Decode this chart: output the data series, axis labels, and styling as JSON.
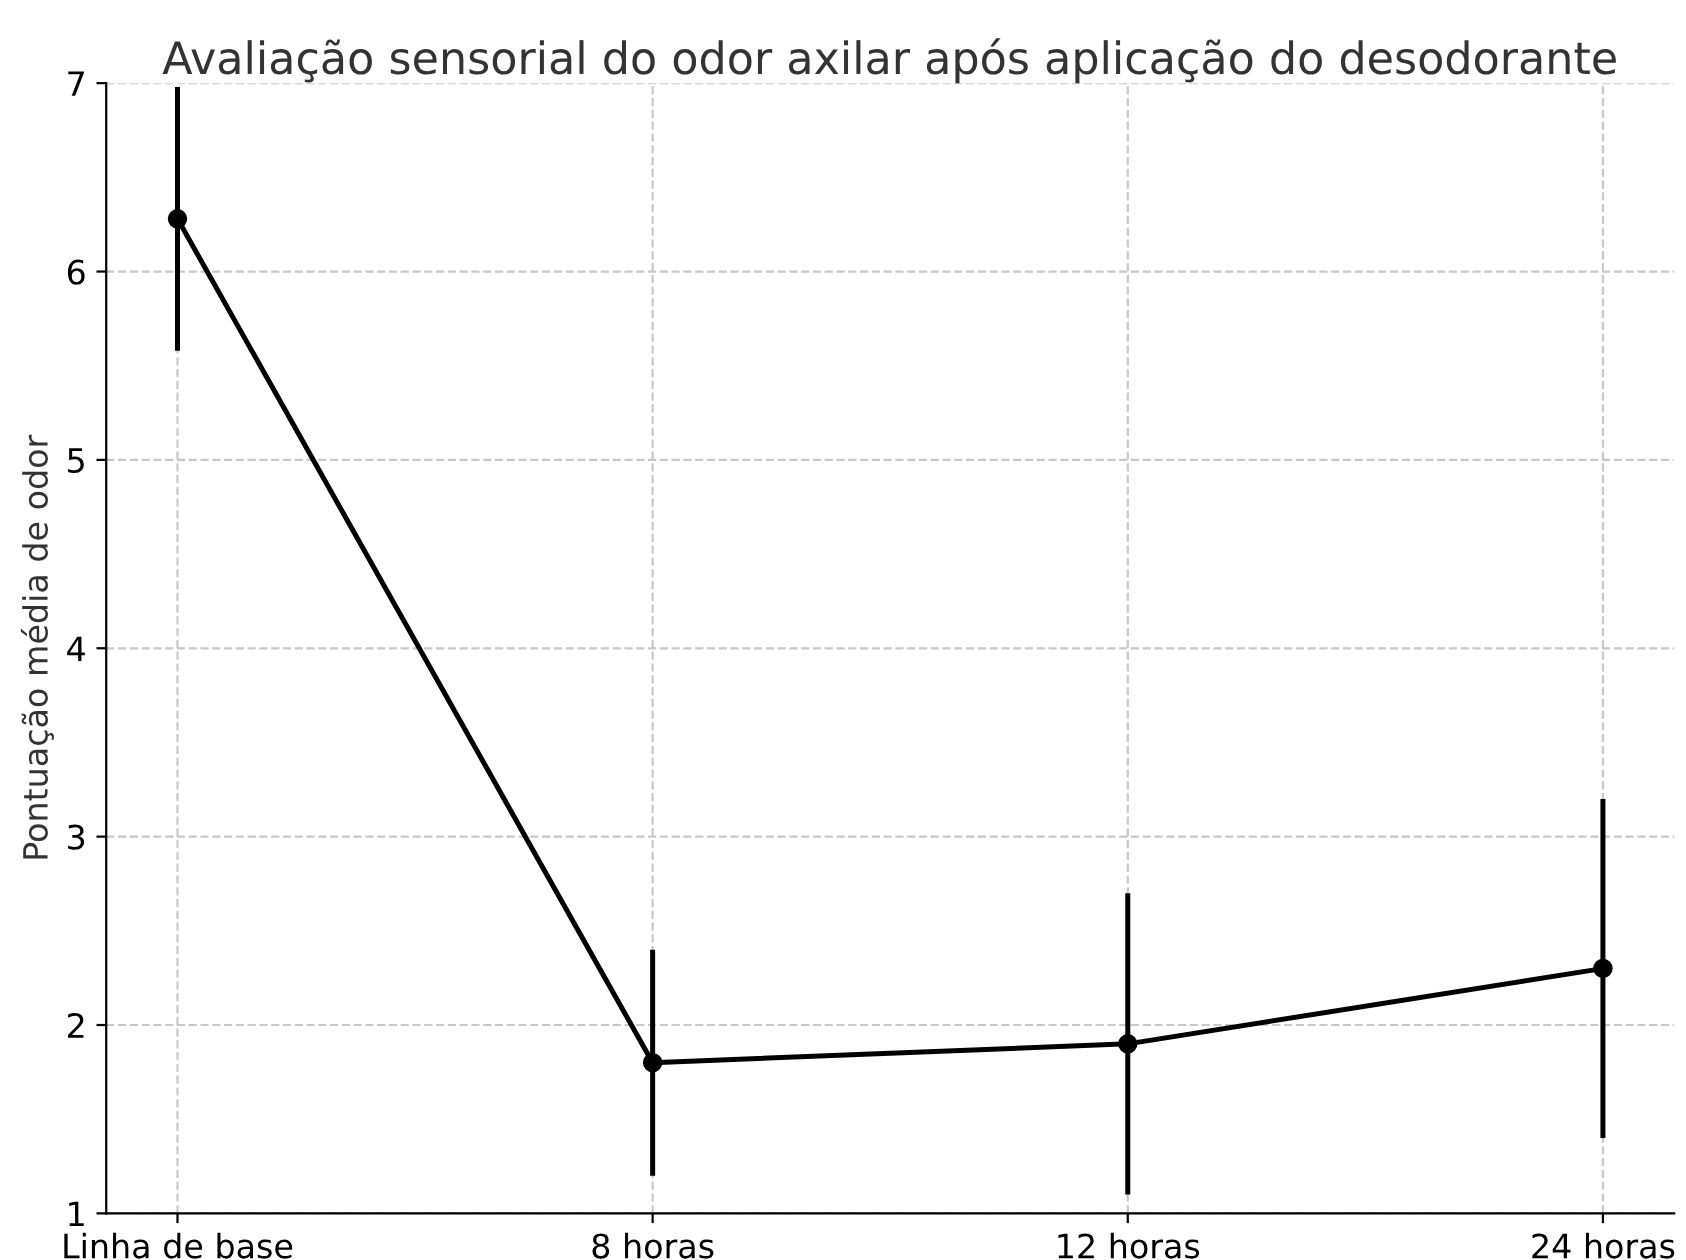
{
  "chart_data": {
    "type": "line",
    "title": "Avaliação sensorial do odor axilar após aplicação do desodorante",
    "ylabel": "Pontuação média de odor",
    "categories": [
      "Linha de base",
      "8 horas",
      "12 horas",
      "24 horas"
    ],
    "series": [
      {
        "color": "#000000",
        "values": [
          6.28,
          1.8,
          1.9,
          2.3
        ],
        "errors": [
          0.7,
          0.6,
          0.8,
          0.9
        ]
      }
    ],
    "ylim": [
      1,
      7
    ],
    "yticks": [
      1,
      2,
      3,
      4,
      5,
      6,
      7
    ],
    "grid": true,
    "marker": "circle",
    "line_style": "solid"
  }
}
